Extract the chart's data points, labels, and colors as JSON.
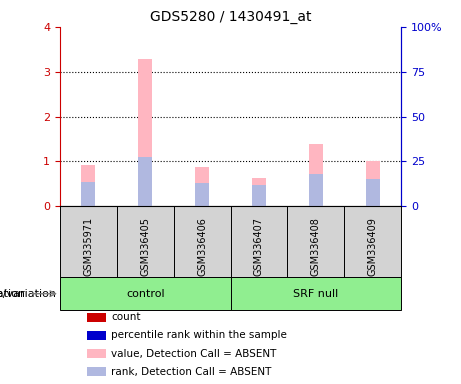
{
  "title": "GDS5280 / 1430491_at",
  "samples": [
    "GSM335971",
    "GSM336405",
    "GSM336406",
    "GSM336407",
    "GSM336408",
    "GSM336409"
  ],
  "absent_values": [
    0.92,
    3.28,
    0.88,
    0.63,
    1.38,
    1.0
  ],
  "absent_ranks": [
    0.55,
    1.1,
    0.52,
    0.48,
    0.73,
    0.62
  ],
  "ylim_left": [
    0,
    4
  ],
  "ylim_right": [
    0,
    100
  ],
  "yticks_left": [
    0,
    1,
    2,
    3,
    4
  ],
  "yticks_right": [
    0,
    25,
    50,
    75,
    100
  ],
  "yticklabels_right": [
    "0",
    "25",
    "50",
    "75",
    "100%"
  ],
  "bar_width": 0.25,
  "absent_bar_color": "#ffb6c1",
  "absent_rank_color": "#b0b8e0",
  "sample_bg_color": "#d3d3d3",
  "group_spans": [
    [
      0,
      3,
      "control"
    ],
    [
      3,
      6,
      "SRF null"
    ]
  ],
  "group_fill_color": "#90ee90",
  "legend_items": [
    {
      "label": "count",
      "color": "#cc0000"
    },
    {
      "label": "percentile rank within the sample",
      "color": "#0000cc"
    },
    {
      "label": "value, Detection Call = ABSENT",
      "color": "#ffb6c1"
    },
    {
      "label": "rank, Detection Call = ABSENT",
      "color": "#b0b8e0"
    }
  ],
  "genotype_label": "genotype/variation",
  "left_axis_color": "#cc0000",
  "right_axis_color": "#0000cc",
  "title_fontsize": 10,
  "tick_fontsize": 8,
  "sample_fontsize": 7,
  "group_fontsize": 8,
  "legend_fontsize": 7.5
}
